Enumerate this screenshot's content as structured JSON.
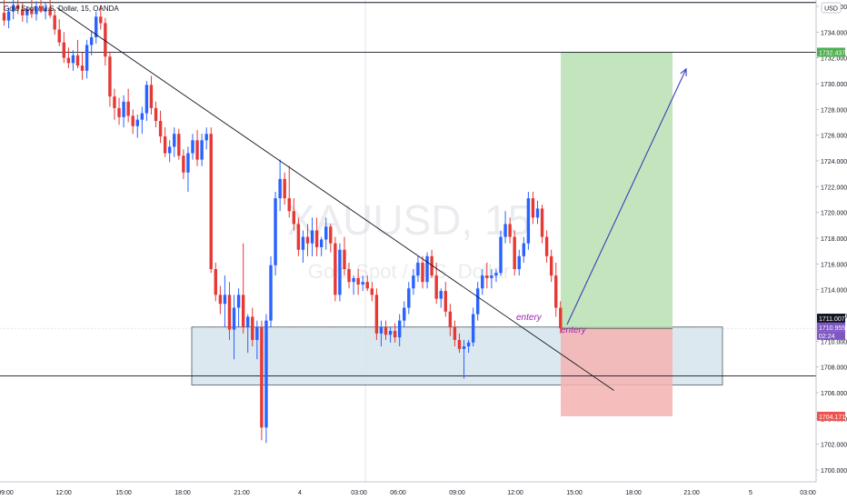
{
  "symbol": {
    "title": "Gold Spot / U.S. Dollar, 15, OANDA"
  },
  "watermark": {
    "symbol": "XAUUSD, 15",
    "description": "Gold Spot / U.S. Dollar"
  },
  "currency_badge": "USD",
  "price_axis": {
    "ticks": [
      "1736.000",
      "1734.000",
      "1732.000",
      "1730.000",
      "1728.000",
      "1726.000",
      "1724.000",
      "1722.000",
      "1720.000",
      "1718.000",
      "1716.000",
      "1714.000",
      "1712.000",
      "1710.000",
      "1708.000",
      "1706.000",
      "1704.000",
      "1702.000",
      "1700.000"
    ],
    "tag_target": "1732.437",
    "tag_last": "1711.007",
    "tag_current": "1710.955",
    "tag_countdown": "02:24",
    "tag_stop": "1704.171"
  },
  "time_axis": {
    "ticks": [
      "09:00",
      "12:00",
      "15:00",
      "18:00",
      "21:00",
      "4",
      "03:00",
      "06:00",
      "09:00",
      "12:00",
      "15:00",
      "18:00",
      "21:00",
      "5",
      "03:00"
    ]
  },
  "annotations": {
    "entry_left": "entery",
    "entry_right": "entery"
  },
  "colors": {
    "up": "#2962ff",
    "down": "#e53935",
    "target_zone": "#b9e1b3",
    "stop_zone": "#f5b2b2",
    "support_zone": "#d5e4ec",
    "arrow": "#3a3fb8",
    "annotation": "#9c27b0",
    "target_tag": "#4caf50",
    "stop_tag": "#ef5350",
    "last_tag": "#131722",
    "current_tag": "#7e57c2"
  },
  "chart_data": {
    "type": "candlestick",
    "title": "Gold Spot / U.S. Dollar, 15, OANDA",
    "xlabel": "",
    "ylabel": "",
    "ylim": [
      1699,
      1737
    ],
    "grid": false,
    "candles": [
      {
        "o": 1735.5,
        "h": 1736.5,
        "l": 1734.5,
        "c": 1734.9
      },
      {
        "o": 1734.9,
        "h": 1735.9,
        "l": 1734.3,
        "c": 1735.6
      },
      {
        "o": 1735.6,
        "h": 1736.6,
        "l": 1735.0,
        "c": 1736.1
      },
      {
        "o": 1736.1,
        "h": 1736.8,
        "l": 1735.4,
        "c": 1735.8
      },
      {
        "o": 1735.8,
        "h": 1736.3,
        "l": 1734.8,
        "c": 1735.3
      },
      {
        "o": 1735.3,
        "h": 1736.0,
        "l": 1734.7,
        "c": 1735.8
      },
      {
        "o": 1735.8,
        "h": 1736.5,
        "l": 1735.1,
        "c": 1735.4
      },
      {
        "o": 1735.4,
        "h": 1736.4,
        "l": 1734.9,
        "c": 1736.0
      },
      {
        "o": 1736.0,
        "h": 1736.9,
        "l": 1735.5,
        "c": 1735.6
      },
      {
        "o": 1735.6,
        "h": 1736.3,
        "l": 1735.0,
        "c": 1735.9
      },
      {
        "o": 1735.9,
        "h": 1736.5,
        "l": 1735.1,
        "c": 1735.3
      },
      {
        "o": 1735.3,
        "h": 1735.8,
        "l": 1733.8,
        "c": 1734.2
      },
      {
        "o": 1734.2,
        "h": 1735.0,
        "l": 1732.9,
        "c": 1733.2
      },
      {
        "o": 1733.2,
        "h": 1734.0,
        "l": 1731.6,
        "c": 1732.0
      },
      {
        "o": 1732.0,
        "h": 1732.8,
        "l": 1731.2,
        "c": 1731.6
      },
      {
        "o": 1731.6,
        "h": 1732.6,
        "l": 1731.0,
        "c": 1732.2
      },
      {
        "o": 1732.2,
        "h": 1733.4,
        "l": 1731.2,
        "c": 1731.4
      },
      {
        "o": 1731.4,
        "h": 1732.4,
        "l": 1730.3,
        "c": 1731.0
      },
      {
        "o": 1731.0,
        "h": 1733.4,
        "l": 1730.4,
        "c": 1733.0
      },
      {
        "o": 1733.0,
        "h": 1734.1,
        "l": 1732.2,
        "c": 1733.6
      },
      {
        "o": 1733.6,
        "h": 1735.6,
        "l": 1733.1,
        "c": 1735.2
      },
      {
        "o": 1735.2,
        "h": 1736.1,
        "l": 1734.2,
        "c": 1734.7
      },
      {
        "o": 1734.7,
        "h": 1735.1,
        "l": 1731.4,
        "c": 1732.1
      },
      {
        "o": 1732.1,
        "h": 1732.5,
        "l": 1728.2,
        "c": 1729.0
      },
      {
        "o": 1729.0,
        "h": 1729.6,
        "l": 1727.2,
        "c": 1728.1
      },
      {
        "o": 1728.1,
        "h": 1728.9,
        "l": 1726.8,
        "c": 1727.4
      },
      {
        "o": 1727.4,
        "h": 1729.1,
        "l": 1726.6,
        "c": 1728.6
      },
      {
        "o": 1728.6,
        "h": 1729.6,
        "l": 1727.0,
        "c": 1727.5
      },
      {
        "o": 1727.5,
        "h": 1728.0,
        "l": 1726.1,
        "c": 1726.7
      },
      {
        "o": 1726.7,
        "h": 1727.6,
        "l": 1725.8,
        "c": 1727.2
      },
      {
        "o": 1727.2,
        "h": 1728.2,
        "l": 1726.1,
        "c": 1727.7
      },
      {
        "o": 1727.7,
        "h": 1730.2,
        "l": 1727.1,
        "c": 1729.9
      },
      {
        "o": 1729.9,
        "h": 1730.6,
        "l": 1727.6,
        "c": 1728.1
      },
      {
        "o": 1728.1,
        "h": 1728.6,
        "l": 1726.6,
        "c": 1727.1
      },
      {
        "o": 1727.1,
        "h": 1727.9,
        "l": 1725.4,
        "c": 1725.9
      },
      {
        "o": 1725.9,
        "h": 1726.6,
        "l": 1724.3,
        "c": 1724.6
      },
      {
        "o": 1724.6,
        "h": 1725.6,
        "l": 1723.9,
        "c": 1725.1
      },
      {
        "o": 1725.1,
        "h": 1726.6,
        "l": 1724.3,
        "c": 1726.1
      },
      {
        "o": 1726.1,
        "h": 1726.5,
        "l": 1724.1,
        "c": 1724.4
      },
      {
        "o": 1724.4,
        "h": 1724.9,
        "l": 1722.6,
        "c": 1723.1
      },
      {
        "o": 1723.1,
        "h": 1725.1,
        "l": 1721.6,
        "c": 1724.6
      },
      {
        "o": 1724.6,
        "h": 1726.1,
        "l": 1724.1,
        "c": 1725.6
      },
      {
        "o": 1725.6,
        "h": 1726.4,
        "l": 1723.6,
        "c": 1724.1
      },
      {
        "o": 1724.1,
        "h": 1726.1,
        "l": 1723.6,
        "c": 1725.6
      },
      {
        "o": 1725.6,
        "h": 1726.6,
        "l": 1724.9,
        "c": 1726.1
      },
      {
        "o": 1726.1,
        "h": 1726.6,
        "l": 1715.3,
        "c": 1715.6
      },
      {
        "o": 1715.6,
        "h": 1716.1,
        "l": 1713.1,
        "c": 1713.6
      },
      {
        "o": 1713.6,
        "h": 1714.3,
        "l": 1712.1,
        "c": 1712.9
      },
      {
        "o": 1712.9,
        "h": 1715.1,
        "l": 1711.1,
        "c": 1713.6
      },
      {
        "o": 1713.6,
        "h": 1714.6,
        "l": 1710.1,
        "c": 1710.9
      },
      {
        "o": 1710.9,
        "h": 1713.6,
        "l": 1708.6,
        "c": 1712.6
      },
      {
        "o": 1712.6,
        "h": 1714.1,
        "l": 1711.1,
        "c": 1713.6
      },
      {
        "o": 1713.6,
        "h": 1717.6,
        "l": 1710.6,
        "c": 1711.1
      },
      {
        "o": 1711.1,
        "h": 1712.1,
        "l": 1709.1,
        "c": 1711.9
      },
      {
        "o": 1711.9,
        "h": 1712.6,
        "l": 1709.6,
        "c": 1710.1
      },
      {
        "o": 1710.1,
        "h": 1711.6,
        "l": 1708.6,
        "c": 1711.1
      },
      {
        "o": 1711.1,
        "h": 1711.6,
        "l": 1702.3,
        "c": 1703.3
      },
      {
        "o": 1703.3,
        "h": 1712.1,
        "l": 1702.1,
        "c": 1711.6
      },
      {
        "o": 1711.6,
        "h": 1716.6,
        "l": 1711.1,
        "c": 1715.9
      },
      {
        "o": 1715.9,
        "h": 1721.6,
        "l": 1715.1,
        "c": 1721.1
      },
      {
        "o": 1721.1,
        "h": 1724.1,
        "l": 1720.1,
        "c": 1722.6
      },
      {
        "o": 1722.6,
        "h": 1723.1,
        "l": 1720.6,
        "c": 1721.1
      },
      {
        "o": 1721.1,
        "h": 1723.6,
        "l": 1719.6,
        "c": 1720.1
      },
      {
        "o": 1720.1,
        "h": 1721.1,
        "l": 1718.6,
        "c": 1719.1
      },
      {
        "o": 1719.1,
        "h": 1719.6,
        "l": 1716.6,
        "c": 1717.1
      },
      {
        "o": 1717.1,
        "h": 1718.6,
        "l": 1716.1,
        "c": 1718.1
      },
      {
        "o": 1718.1,
        "h": 1719.1,
        "l": 1716.6,
        "c": 1717.6
      },
      {
        "o": 1717.6,
        "h": 1719.6,
        "l": 1716.6,
        "c": 1718.6
      },
      {
        "o": 1718.6,
        "h": 1719.6,
        "l": 1716.6,
        "c": 1717.3
      },
      {
        "o": 1717.3,
        "h": 1718.1,
        "l": 1716.6,
        "c": 1717.9
      },
      {
        "o": 1717.9,
        "h": 1719.6,
        "l": 1717.1,
        "c": 1718.9
      },
      {
        "o": 1718.9,
        "h": 1719.1,
        "l": 1716.9,
        "c": 1717.6
      },
      {
        "o": 1717.6,
        "h": 1718.1,
        "l": 1713.1,
        "c": 1713.6
      },
      {
        "o": 1713.6,
        "h": 1717.6,
        "l": 1713.1,
        "c": 1717.1
      },
      {
        "o": 1717.1,
        "h": 1718.1,
        "l": 1715.1,
        "c": 1715.6
      },
      {
        "o": 1715.6,
        "h": 1716.1,
        "l": 1714.1,
        "c": 1714.6
      },
      {
        "o": 1714.6,
        "h": 1715.1,
        "l": 1713.6,
        "c": 1714.9
      },
      {
        "o": 1714.9,
        "h": 1715.6,
        "l": 1713.6,
        "c": 1714.4
      },
      {
        "o": 1714.4,
        "h": 1715.1,
        "l": 1713.9,
        "c": 1714.6
      },
      {
        "o": 1714.6,
        "h": 1715.1,
        "l": 1713.9,
        "c": 1714.1
      },
      {
        "o": 1714.1,
        "h": 1714.6,
        "l": 1713.1,
        "c": 1713.6
      },
      {
        "o": 1713.6,
        "h": 1714.1,
        "l": 1710.1,
        "c": 1710.6
      },
      {
        "o": 1710.6,
        "h": 1711.6,
        "l": 1709.6,
        "c": 1711.1
      },
      {
        "o": 1711.1,
        "h": 1711.6,
        "l": 1710.1,
        "c": 1710.5
      },
      {
        "o": 1710.5,
        "h": 1711.1,
        "l": 1709.9,
        "c": 1710.8
      },
      {
        "o": 1710.8,
        "h": 1711.4,
        "l": 1709.9,
        "c": 1710.3
      },
      {
        "o": 1710.3,
        "h": 1712.1,
        "l": 1709.6,
        "c": 1711.6
      },
      {
        "o": 1711.6,
        "h": 1713.1,
        "l": 1711.1,
        "c": 1712.6
      },
      {
        "o": 1712.6,
        "h": 1714.6,
        "l": 1712.1,
        "c": 1714.1
      },
      {
        "o": 1714.1,
        "h": 1715.6,
        "l": 1713.6,
        "c": 1715.1
      },
      {
        "o": 1715.1,
        "h": 1716.6,
        "l": 1714.6,
        "c": 1716.1
      },
      {
        "o": 1716.1,
        "h": 1716.6,
        "l": 1714.1,
        "c": 1714.6
      },
      {
        "o": 1714.6,
        "h": 1716.9,
        "l": 1714.1,
        "c": 1716.6
      },
      {
        "o": 1716.6,
        "h": 1717.1,
        "l": 1714.9,
        "c": 1715.1
      },
      {
        "o": 1715.1,
        "h": 1716.1,
        "l": 1712.9,
        "c": 1713.3
      },
      {
        "o": 1713.3,
        "h": 1714.1,
        "l": 1712.6,
        "c": 1713.9
      },
      {
        "o": 1713.9,
        "h": 1714.6,
        "l": 1711.9,
        "c": 1712.3
      },
      {
        "o": 1712.3,
        "h": 1712.9,
        "l": 1710.4,
        "c": 1711.1
      },
      {
        "o": 1711.1,
        "h": 1711.6,
        "l": 1709.6,
        "c": 1710.1
      },
      {
        "o": 1710.1,
        "h": 1710.6,
        "l": 1709.1,
        "c": 1709.4
      },
      {
        "o": 1709.4,
        "h": 1710.1,
        "l": 1707.1,
        "c": 1709.6
      },
      {
        "o": 1709.6,
        "h": 1710.1,
        "l": 1709.1,
        "c": 1709.9
      },
      {
        "o": 1709.9,
        "h": 1712.6,
        "l": 1709.6,
        "c": 1712.1
      },
      {
        "o": 1712.1,
        "h": 1714.6,
        "l": 1711.6,
        "c": 1714.1
      },
      {
        "o": 1714.1,
        "h": 1715.6,
        "l": 1713.6,
        "c": 1715.1
      },
      {
        "o": 1715.1,
        "h": 1716.1,
        "l": 1714.1,
        "c": 1714.9
      },
      {
        "o": 1714.9,
        "h": 1715.6,
        "l": 1714.1,
        "c": 1715.1
      },
      {
        "o": 1715.1,
        "h": 1715.6,
        "l": 1714.6,
        "c": 1715.3
      },
      {
        "o": 1715.3,
        "h": 1718.6,
        "l": 1715.1,
        "c": 1718.1
      },
      {
        "o": 1718.1,
        "h": 1720.1,
        "l": 1717.6,
        "c": 1719.1
      },
      {
        "o": 1719.1,
        "h": 1719.6,
        "l": 1717.6,
        "c": 1718.1
      },
      {
        "o": 1718.1,
        "h": 1718.6,
        "l": 1715.1,
        "c": 1715.6
      },
      {
        "o": 1715.6,
        "h": 1717.1,
        "l": 1715.1,
        "c": 1716.6
      },
      {
        "o": 1716.6,
        "h": 1718.1,
        "l": 1716.1,
        "c": 1717.6
      },
      {
        "o": 1717.6,
        "h": 1721.6,
        "l": 1717.1,
        "c": 1721.1
      },
      {
        "o": 1721.1,
        "h": 1721.6,
        "l": 1719.1,
        "c": 1719.6
      },
      {
        "o": 1719.6,
        "h": 1720.9,
        "l": 1719.1,
        "c": 1720.3
      },
      {
        "o": 1720.3,
        "h": 1720.6,
        "l": 1717.6,
        "c": 1718.1
      },
      {
        "o": 1718.1,
        "h": 1718.6,
        "l": 1716.1,
        "c": 1716.6
      },
      {
        "o": 1716.6,
        "h": 1717.1,
        "l": 1714.6,
        "c": 1715.1
      },
      {
        "o": 1715.1,
        "h": 1716.1,
        "l": 1711.9,
        "c": 1712.6
      },
      {
        "o": 1712.6,
        "h": 1713.1,
        "l": 1710.6,
        "c": 1711.0
      }
    ],
    "horizontal_lines": [
      1736.3,
      1732.437,
      1707.3
    ],
    "support_zone": {
      "from": 1706.6,
      "to": 1711.1
    },
    "trend_line": {
      "from": [
        11,
        1735.9
      ],
      "to": [
        126,
        1706.6
      ]
    },
    "position": {
      "entry": 1711.0,
      "target": 1732.437,
      "stop": 1704.171
    },
    "projection_arrow": {
      "from": [
        124,
        1711.3
      ],
      "to": [
        133,
        1731.0
      ]
    }
  }
}
